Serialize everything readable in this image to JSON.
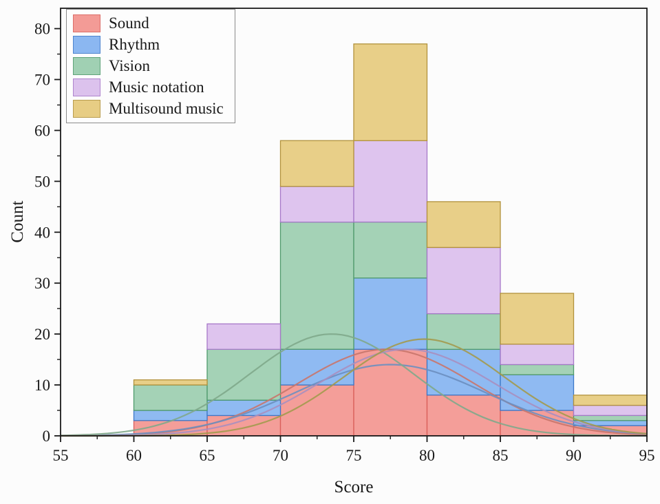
{
  "chart_data": {
    "type": "bar",
    "subtype": "stacked-histogram-with-fit-curves",
    "title": "",
    "xlabel": "Score",
    "ylabel": "Count",
    "xlim": [
      55,
      95
    ],
    "ylim": [
      0,
      84
    ],
    "x_ticks": [
      55,
      60,
      65,
      70,
      75,
      80,
      85,
      90,
      95
    ],
    "y_ticks": [
      0,
      10,
      20,
      30,
      40,
      50,
      60,
      70,
      80
    ],
    "bin_edges": [
      60,
      65,
      70,
      75,
      80,
      85,
      90,
      95
    ],
    "grid": false,
    "legend_position": "top-left",
    "axis_color": "#1a1a1a",
    "series": [
      {
        "name": "Sound",
        "fill": "#F2918B",
        "edge": "#D95F5A",
        "curve_color": "#C9756B",
        "values": [
          3,
          4,
          10,
          17,
          8,
          5,
          2
        ],
        "curve": {
          "amp": 17,
          "mean": 77.2,
          "sd": 6.0
        }
      },
      {
        "name": "Rhythm",
        "fill": "#7FB0F0",
        "edge": "#3C78C8",
        "curve_color": "#6C8FC0",
        "values": [
          2,
          3,
          7,
          14,
          9,
          7,
          1
        ],
        "curve": {
          "amp": 14,
          "mean": 77.5,
          "sd": 6.5
        }
      },
      {
        "name": "Vision",
        "fill": "#97CCAC",
        "edge": "#4F9A6C",
        "curve_color": "#7FA98B",
        "values": [
          5,
          10,
          25,
          11,
          7,
          2,
          1
        ],
        "curve": {
          "amp": 20,
          "mean": 73.5,
          "sd": 5.6
        }
      },
      {
        "name": "Music notation",
        "fill": "#D9BCEC",
        "edge": "#A678C8",
        "curve_color": "#A98FBF",
        "values": [
          0,
          5,
          7,
          16,
          13,
          4,
          2
        ],
        "curve": {
          "amp": 17,
          "mean": 78.6,
          "sd": 6.0
        }
      },
      {
        "name": "Multisound music",
        "fill": "#E5C878",
        "edge": "#B2923C",
        "curve_color": "#A39A4E",
        "values": [
          1,
          0,
          9,
          19,
          9,
          10,
          2
        ],
        "curve": {
          "amp": 19,
          "mean": 79.8,
          "sd": 5.5
        }
      }
    ]
  }
}
